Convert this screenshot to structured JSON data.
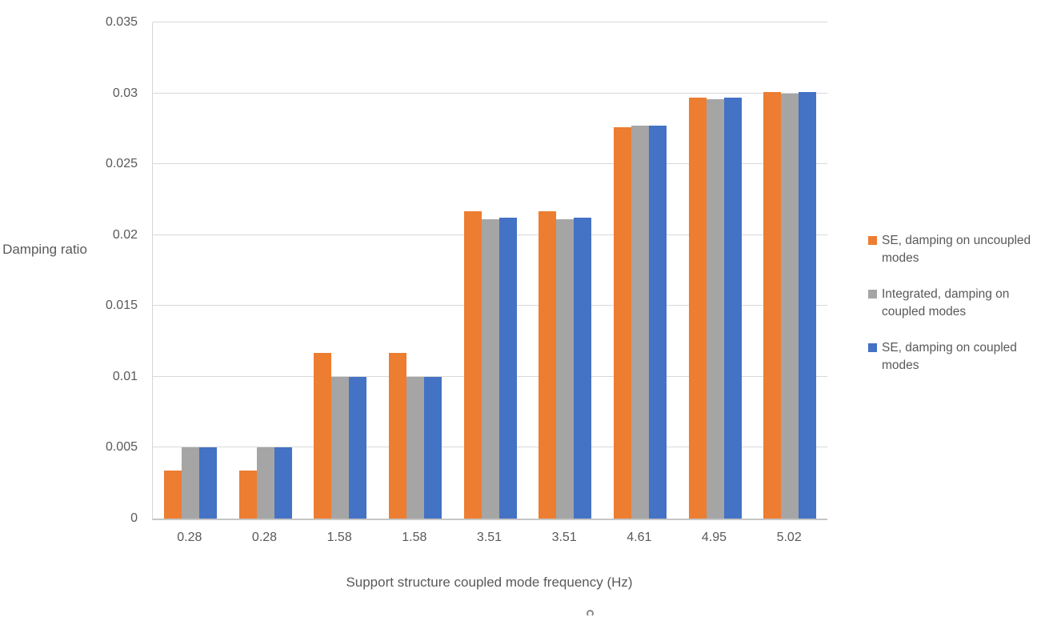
{
  "chart_data": {
    "type": "bar",
    "title": "",
    "categories": [
      "0.28",
      "0.28",
      "1.58",
      "1.58",
      "3.51",
      "3.51",
      "4.61",
      "4.95",
      "5.02"
    ],
    "series": [
      {
        "name": "SE, damping on uncoupled modes",
        "color": "#ED7D31",
        "values": [
          0.0034,
          0.0034,
          0.0117,
          0.0117,
          0.0217,
          0.0217,
          0.0276,
          0.0297,
          0.0301
        ]
      },
      {
        "name": "Integrated, damping on coupled modes",
        "color": "#A5A5A5",
        "values": [
          0.005,
          0.005,
          0.01,
          0.01,
          0.0211,
          0.0211,
          0.0277,
          0.0296,
          0.03
        ]
      },
      {
        "name": "SE, damping on coupled modes",
        "color": "#4472C4",
        "values": [
          0.005,
          0.005,
          0.01,
          0.01,
          0.0212,
          0.0212,
          0.0277,
          0.0297,
          0.0301
        ]
      }
    ],
    "xlabel": "Support structure coupled mode frequency (Hz)",
    "ylabel": "Damping ratio",
    "ylim": [
      0,
      0.035
    ],
    "ytick_step": 0.005,
    "yticks": [
      "0",
      "0.005",
      "0.01",
      "0.015",
      "0.02",
      "0.025",
      "0.03",
      "0.035"
    ],
    "grid": true,
    "legend_position": "right",
    "colors": {
      "gridline": "#D9D9D9",
      "axis_line": "#C6C6C6",
      "text": "#595959"
    }
  }
}
